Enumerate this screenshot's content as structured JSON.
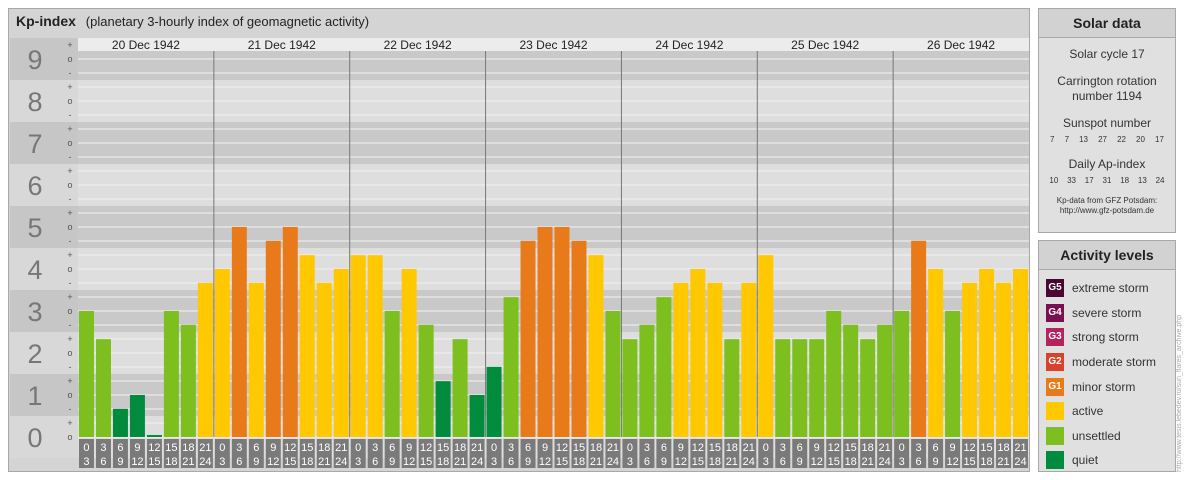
{
  "header": {
    "title": "Kp-index",
    "subtitle": "(planetary 3-hourly index of geomagnetic activity)"
  },
  "chart_data": {
    "type": "bar",
    "y_major_ticks": [
      "0",
      "1",
      "2",
      "3",
      "4",
      "5",
      "6",
      "7",
      "8",
      "9"
    ],
    "y_minor_ticks": [
      "-",
      "o",
      "+"
    ],
    "ylim": [
      0,
      9
    ],
    "days": [
      {
        "label": "20 Dec 1942",
        "values": [
          3.0,
          2.33,
          0.67,
          1.0,
          0.0,
          3.0,
          2.67,
          3.67
        ]
      },
      {
        "label": "21 Dec 1942",
        "values": [
          4.0,
          5.0,
          3.67,
          4.67,
          5.0,
          4.33,
          3.67,
          4.0
        ]
      },
      {
        "label": "22 Dec 1942",
        "values": [
          4.33,
          4.33,
          3.0,
          4.0,
          2.67,
          1.33,
          2.33,
          1.0
        ]
      },
      {
        "label": "23 Dec 1942",
        "values": [
          1.67,
          3.33,
          4.67,
          5.0,
          5.0,
          4.67,
          4.33,
          3.0
        ]
      },
      {
        "label": "24 Dec 1942",
        "values": [
          2.33,
          2.67,
          3.33,
          3.67,
          4.0,
          3.67,
          2.33,
          3.67
        ]
      },
      {
        "label": "25 Dec 1942",
        "values": [
          4.33,
          2.33,
          2.33,
          2.33,
          3.0,
          2.67,
          2.33,
          2.67
        ]
      },
      {
        "label": "26 Dec 1942",
        "values": [
          3.0,
          4.67,
          4.0,
          3.0,
          3.67,
          4.0,
          3.67,
          4.0
        ]
      }
    ],
    "hour_labels": [
      [
        "0",
        "3"
      ],
      [
        "3",
        "6"
      ],
      [
        "6",
        "9"
      ],
      [
        "9",
        "12"
      ],
      [
        "12",
        "15"
      ],
      [
        "15",
        "18"
      ],
      [
        "18",
        "21"
      ],
      [
        "21",
        "24"
      ]
    ],
    "colors": {
      "quiet": "#008c3c",
      "unsettled": "#7cbf1f",
      "active": "#ffc800",
      "minor": "#e87a1a",
      "moderate": "#d8422b",
      "strong": "#b3245e",
      "severe": "#7a1050",
      "extreme": "#4a0530"
    }
  },
  "solar": {
    "title": "Solar data",
    "cycle": "Solar cycle 17",
    "carrington_1": "Carrington rotation",
    "carrington_2": "number 1194",
    "sunspot_title": "Sunspot number",
    "sunspot_values": [
      "7",
      "7",
      "13",
      "27",
      "22",
      "20",
      "17"
    ],
    "ap_title": "Daily Ap-index",
    "ap_values": [
      "10",
      "33",
      "17",
      "31",
      "18",
      "13",
      "24"
    ],
    "source_1": "Kp-data from GFZ Potsdam:",
    "source_2": "http://www.gfz-potsdam.de"
  },
  "activity": {
    "title": "Activity levels",
    "items": [
      {
        "badge": "G5",
        "label": "extreme storm",
        "color": "#4a0530"
      },
      {
        "badge": "G4",
        "label": "severe storm",
        "color": "#7a1050"
      },
      {
        "badge": "G3",
        "label": "strong storm",
        "color": "#b3245e"
      },
      {
        "badge": "G2",
        "label": "moderate storm",
        "color": "#d8422b"
      },
      {
        "badge": "G1",
        "label": "minor storm",
        "color": "#e87a1a"
      },
      {
        "badge": "",
        "label": "active",
        "color": "#ffc800"
      },
      {
        "badge": "",
        "label": "unsettled",
        "color": "#7cbf1f"
      },
      {
        "badge": "",
        "label": "quiet",
        "color": "#008c3c"
      }
    ]
  },
  "credit": "http://www.tesis.lebedev.ru/sun_flares_archive.php"
}
